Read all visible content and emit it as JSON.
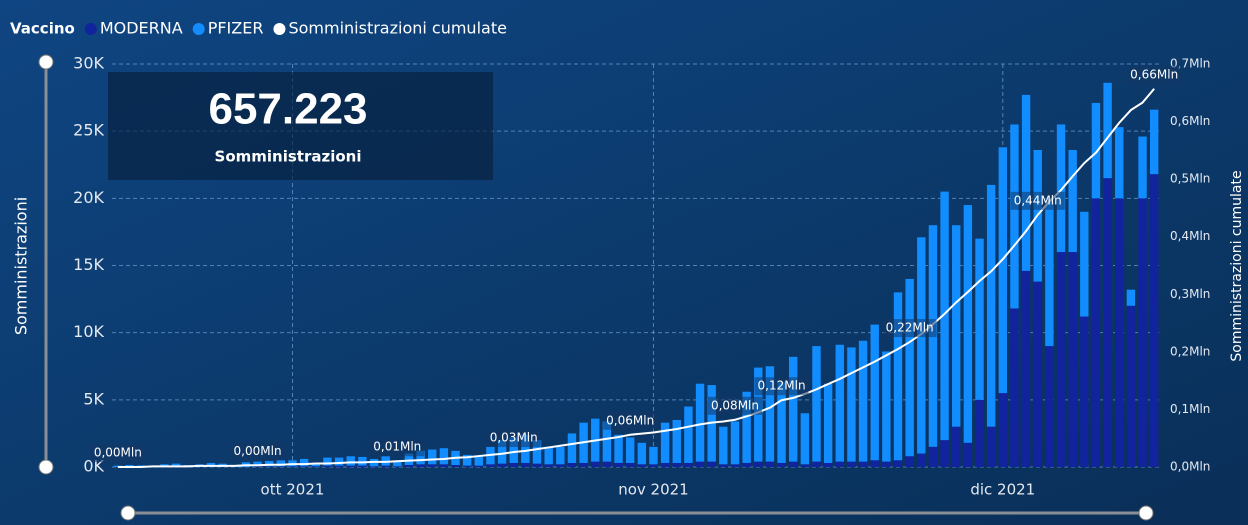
{
  "card": {
    "value": "657.223",
    "label": "Somministrazioni"
  },
  "chart_data": {
    "type": "bar",
    "stacked": true,
    "legend_title": "Vaccino",
    "legend": "top-left",
    "grid": true,
    "ylabel": "Somministrazioni",
    "y2label": "Somministrazioni cumulate",
    "categories": [
      null,
      null,
      null,
      null,
      null,
      null,
      null,
      null,
      null,
      null,
      null,
      null,
      null,
      null,
      null,
      "ott 2021",
      null,
      null,
      null,
      null,
      null,
      null,
      null,
      null,
      null,
      null,
      null,
      null,
      null,
      null,
      null,
      null,
      null,
      null,
      null,
      null,
      null,
      null,
      null,
      null,
      null,
      null,
      null,
      null,
      null,
      null,
      "nov 2021",
      null,
      null,
      null,
      null,
      null,
      null,
      null,
      null,
      null,
      null,
      null,
      null,
      null,
      null,
      null,
      null,
      null,
      null,
      null,
      null,
      null,
      null,
      null,
      null,
      null,
      null,
      null,
      null,
      null,
      "dic 2021",
      null,
      null,
      null,
      null,
      null,
      null,
      null,
      null,
      null,
      null,
      null,
      null,
      null
    ],
    "series": [
      {
        "name": "MODERNA",
        "color": "#12239e",
        "values": [
          0,
          0,
          0,
          0,
          0,
          0,
          0,
          0,
          0,
          0,
          0,
          0,
          50,
          50,
          50,
          50,
          50,
          50,
          100,
          100,
          100,
          100,
          50,
          100,
          50,
          150,
          200,
          200,
          200,
          150,
          100,
          100,
          200,
          250,
          300,
          300,
          250,
          200,
          200,
          300,
          300,
          400,
          400,
          300,
          300,
          200,
          200,
          300,
          300,
          300,
          400,
          400,
          200,
          200,
          300,
          400,
          400,
          300,
          400,
          200,
          400,
          300,
          400,
          400,
          400,
          500,
          400,
          500,
          800,
          1000,
          1500,
          2000,
          3000,
          1800,
          5000,
          3000,
          5500,
          11800,
          14600,
          13800,
          9000,
          16000,
          16000,
          11200,
          20000,
          21500,
          20000,
          12000,
          20000,
          21800
        ]
      },
      {
        "name": "PFIZER",
        "color": "#118dff",
        "values": [
          100,
          150,
          120,
          80,
          200,
          250,
          150,
          200,
          300,
          250,
          100,
          350,
          350,
          400,
          450,
          450,
          550,
          250,
          600,
          600,
          700,
          650,
          550,
          700,
          450,
          850,
          1000,
          1100,
          1200,
          1050,
          800,
          700,
          1300,
          1750,
          1900,
          2100,
          1750,
          1300,
          1300,
          2200,
          3000,
          3200,
          3000,
          2100,
          1900,
          1600,
          1300,
          3000,
          3200,
          4200,
          5800,
          5700,
          2800,
          3200,
          5300,
          7000,
          7100,
          6000,
          7800,
          3800,
          8600,
          5900,
          8700,
          8500,
          9000,
          10100,
          8200,
          12500,
          13200,
          16100,
          16500,
          18500,
          15000,
          17700,
          12000,
          18000,
          18300,
          13700,
          13100,
          9800,
          11000,
          9500,
          7600,
          7800,
          7100,
          7100,
          5300,
          1200,
          4600,
          4800
        ]
      },
      {
        "name": "Somministrazioni cumulate",
        "type": "line",
        "axis": "y2",
        "color": "#ffffff",
        "values": [
          0,
          0,
          0,
          0.001,
          0.001,
          0.001,
          0.001,
          0.002,
          0.002,
          0.002,
          0.002,
          0.003,
          0.003,
          0.004,
          0.004,
          0.005,
          0.005,
          0.006,
          0.006,
          0.007,
          0.008,
          0.008,
          0.009,
          0.009,
          0.01,
          0.011,
          0.012,
          0.013,
          0.014,
          0.016,
          0.017,
          0.019,
          0.021,
          0.023,
          0.026,
          0.028,
          0.031,
          0.034,
          0.037,
          0.04,
          0.043,
          0.046,
          0.049,
          0.052,
          0.056,
          0.058,
          0.06,
          0.063,
          0.066,
          0.07,
          0.074,
          0.077,
          0.079,
          0.082,
          0.088,
          0.095,
          0.103,
          0.116,
          0.12,
          0.127,
          0.135,
          0.144,
          0.153,
          0.163,
          0.173,
          0.183,
          0.194,
          0.205,
          0.217,
          0.231,
          0.248,
          0.266,
          0.286,
          0.304,
          0.323,
          0.34,
          0.361,
          0.385,
          0.41,
          0.438,
          0.461,
          0.481,
          0.505,
          0.528,
          0.546,
          0.572,
          0.598,
          0.62,
          0.633,
          0.657
        ],
        "value_labels": [
          "0,00Mln",
          null,
          null,
          null,
          null,
          null,
          null,
          null,
          null,
          null,
          null,
          null,
          "0,00Mln",
          null,
          null,
          null,
          null,
          null,
          null,
          null,
          null,
          null,
          null,
          null,
          "0,01Mln",
          null,
          null,
          null,
          null,
          null,
          null,
          null,
          null,
          null,
          "0,03Mln",
          null,
          null,
          null,
          null,
          null,
          null,
          null,
          null,
          null,
          "0,06Mln",
          null,
          null,
          null,
          null,
          null,
          null,
          null,
          null,
          "0,08Mln",
          null,
          null,
          null,
          "0,12Mln",
          null,
          null,
          null,
          null,
          null,
          null,
          null,
          null,
          null,
          null,
          "0,22Mln",
          null,
          null,
          null,
          null,
          null,
          null,
          null,
          null,
          null,
          null,
          "0,44Mln",
          null,
          null,
          null,
          null,
          null,
          null,
          null,
          null,
          null,
          "0,66Mln"
        ]
      }
    ],
    "ylim": [
      0,
      30000
    ],
    "yticks": [
      {
        "value": 0,
        "label": "0K"
      },
      {
        "value": 5000,
        "label": "5K"
      },
      {
        "value": 10000,
        "label": "10K"
      },
      {
        "value": 15000,
        "label": "15K"
      },
      {
        "value": 20000,
        "label": "20K"
      },
      {
        "value": 25000,
        "label": "25K"
      },
      {
        "value": 30000,
        "label": "30K"
      }
    ],
    "y2lim": [
      0,
      0.7
    ],
    "y2ticks": [
      {
        "value": 0,
        "label": "0,0Mln"
      },
      {
        "value": 0.1,
        "label": "0,1Mln"
      },
      {
        "value": 0.2,
        "label": "0,2Mln"
      },
      {
        "value": 0.3,
        "label": "0,3Mln"
      },
      {
        "value": 0.4,
        "label": "0,4Mln"
      },
      {
        "value": 0.5,
        "label": "0,5Mln"
      },
      {
        "value": 0.6,
        "label": "0,6Mln"
      },
      {
        "value": 0.7,
        "label": "0,7Mln"
      }
    ]
  }
}
